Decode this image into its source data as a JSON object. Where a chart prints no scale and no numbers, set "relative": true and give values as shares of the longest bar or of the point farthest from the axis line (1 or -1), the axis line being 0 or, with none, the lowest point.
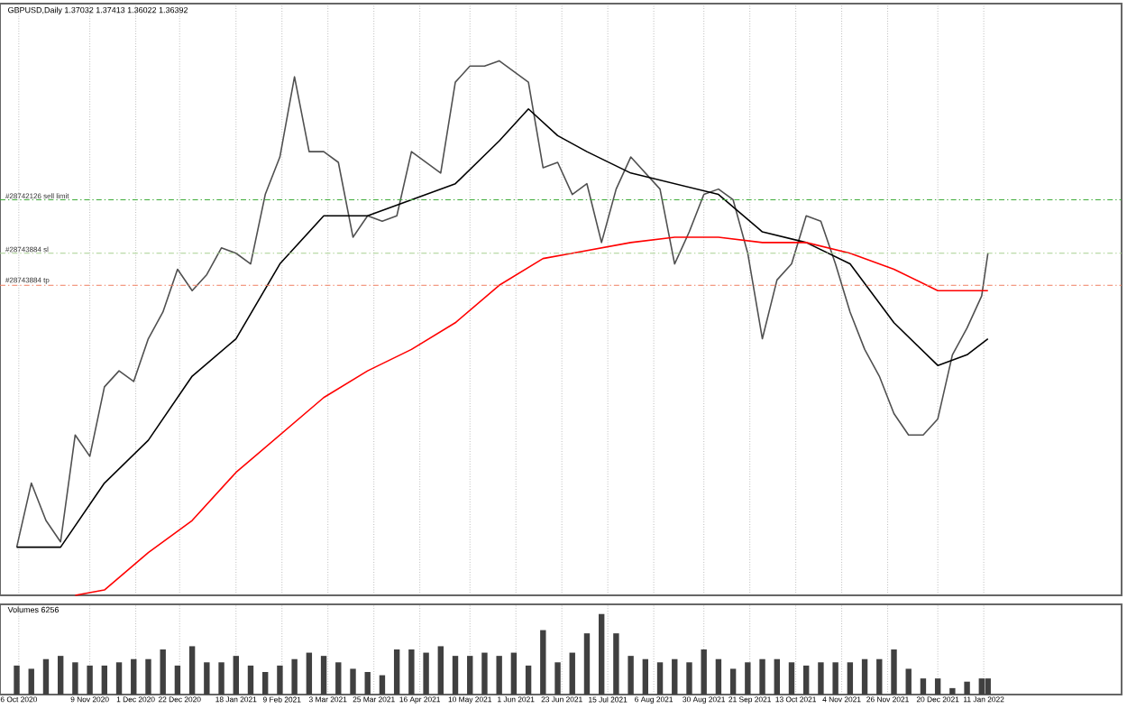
{
  "chart_data": [
    {
      "type": "line",
      "title": "GBPUSD,Daily 1.37032 1.37413 1.36022 1.36392",
      "relative": true,
      "tick_labels": false,
      "grid": "x",
      "xlim": [
        "2020-09-27",
        "2022-03-18"
      ],
      "series": [
        {
          "color": "#505050",
          "x": [
            "2020-10-05",
            "2020-10-12",
            "2020-10-19",
            "2020-10-26",
            "2020-11-02",
            "2020-11-09",
            "2020-11-16",
            "2020-11-23",
            "2020-11-30",
            "2020-12-07",
            "2020-12-14",
            "2020-12-21",
            "2020-12-28",
            "2021-01-04",
            "2021-01-11",
            "2021-01-18",
            "2021-01-25",
            "2021-02-01",
            "2021-02-08",
            "2021-02-15",
            "2021-02-22",
            "2021-03-01",
            "2021-03-08",
            "2021-03-15",
            "2021-03-22",
            "2021-03-29",
            "2021-04-05",
            "2021-04-12",
            "2021-04-19",
            "2021-04-26",
            "2021-05-03",
            "2021-05-10",
            "2021-05-17",
            "2021-05-24",
            "2021-05-31",
            "2021-06-07",
            "2021-06-14",
            "2021-06-21",
            "2021-06-28",
            "2021-07-05",
            "2021-07-12",
            "2021-07-19",
            "2021-07-26",
            "2021-08-02",
            "2021-08-09",
            "2021-08-16",
            "2021-08-23",
            "2021-08-30",
            "2021-09-06",
            "2021-09-13",
            "2021-09-20",
            "2021-09-27",
            "2021-10-04",
            "2021-10-11",
            "2021-10-18",
            "2021-10-25",
            "2021-11-01",
            "2021-11-08",
            "2021-11-15",
            "2021-11-22",
            "2021-11-29",
            "2021-12-06",
            "2021-12-13",
            "2021-12-20",
            "2021-12-27",
            "2022-01-03",
            "2022-01-10",
            "2022-01-13"
          ],
          "values": [
            0.09,
            0.21,
            0.14,
            0.1,
            0.3,
            0.26,
            0.39,
            0.42,
            0.4,
            0.48,
            0.53,
            0.61,
            0.57,
            0.6,
            0.65,
            0.64,
            0.62,
            0.75,
            0.82,
            0.97,
            0.83,
            0.83,
            0.81,
            0.67,
            0.71,
            0.7,
            0.71,
            0.83,
            0.81,
            0.79,
            0.96,
            0.99,
            0.99,
            1.0,
            0.98,
            0.96,
            0.8,
            0.81,
            0.75,
            0.77,
            0.66,
            0.76,
            0.82,
            0.79,
            0.76,
            0.62,
            0.68,
            0.75,
            0.76,
            0.74,
            0.64,
            0.48,
            0.59,
            0.62,
            0.71,
            0.7,
            0.62,
            0.53,
            0.46,
            0.41,
            0.34,
            0.3,
            0.3,
            0.33,
            0.45,
            0.5,
            0.56,
            0.64
          ]
        },
        {
          "color": "#000000",
          "x": [
            "2020-10-05",
            "2020-10-26",
            "2020-11-16",
            "2020-12-07",
            "2020-12-28",
            "2021-01-18",
            "2021-02-08",
            "2021-03-01",
            "2021-03-22",
            "2021-04-12",
            "2021-05-03",
            "2021-05-24",
            "2021-06-07",
            "2021-06-21",
            "2021-07-05",
            "2021-07-26",
            "2021-08-16",
            "2021-09-06",
            "2021-09-27",
            "2021-10-18",
            "2021-11-08",
            "2021-11-29",
            "2021-12-20",
            "2022-01-03",
            "2022-01-13"
          ],
          "values": [
            0.09,
            0.09,
            0.21,
            0.29,
            0.41,
            0.48,
            0.62,
            0.71,
            0.71,
            0.74,
            0.77,
            0.85,
            0.91,
            0.86,
            0.83,
            0.79,
            0.77,
            0.75,
            0.68,
            0.66,
            0.62,
            0.51,
            0.43,
            0.45,
            0.48
          ]
        },
        {
          "color": "#ff0000",
          "x": [
            "2020-11-02",
            "2020-11-16",
            "2020-12-07",
            "2020-12-28",
            "2021-01-18",
            "2021-02-08",
            "2021-03-01",
            "2021-03-22",
            "2021-04-12",
            "2021-05-03",
            "2021-05-24",
            "2021-06-14",
            "2021-06-28",
            "2021-07-26",
            "2021-08-16",
            "2021-09-06",
            "2021-09-27",
            "2021-10-18",
            "2021-11-08",
            "2021-11-29",
            "2021-12-20",
            "2022-01-03",
            "2022-01-13"
          ],
          "values": [
            0.0,
            0.01,
            0.08,
            0.14,
            0.23,
            0.3,
            0.37,
            0.42,
            0.46,
            0.51,
            0.58,
            0.63,
            0.64,
            0.66,
            0.67,
            0.67,
            0.66,
            0.66,
            0.64,
            0.61,
            0.57,
            0.57,
            0.57
          ]
        }
      ],
      "ref_lines": [
        {
          "axis": "y",
          "value": 0.74,
          "label": "#28742126 sell limit",
          "color": "#3aaa35",
          "line_style": "dashdot"
        },
        {
          "axis": "y",
          "value": 0.64,
          "label": "#28743884 sl",
          "color": "#a8d090",
          "line_style": "dashdot"
        },
        {
          "axis": "y",
          "value": 0.58,
          "label": "#28743884 tp",
          "color": "#f08060",
          "line_style": "dashdot"
        }
      ]
    },
    {
      "type": "bar",
      "title": "Volumes 6256",
      "relative": true,
      "tick_labels": "x",
      "grid": "x",
      "color": "#404040",
      "xlim": [
        "2020-09-27",
        "2022-03-18"
      ],
      "xticks": [
        {
          "value": "2020-10-06",
          "label": "6 Oct 2020"
        },
        {
          "value": "2020-11-09",
          "label": "9 Nov 2020"
        },
        {
          "value": "2020-12-01",
          "label": "1 Dec 2020"
        },
        {
          "value": "2020-12-22",
          "label": "22 Dec 2020"
        },
        {
          "value": "2021-01-18",
          "label": "18 Jan 2021"
        },
        {
          "value": "2021-02-09",
          "label": "9 Feb 2021"
        },
        {
          "value": "2021-03-03",
          "label": "3 Mar 2021"
        },
        {
          "value": "2021-03-25",
          "label": "25 Mar 2021"
        },
        {
          "value": "2021-04-16",
          "label": "16 Apr 2021"
        },
        {
          "value": "2021-05-10",
          "label": "10 May 2021"
        },
        {
          "value": "2021-06-01",
          "label": "1 Jun 2021"
        },
        {
          "value": "2021-06-23",
          "label": "23 Jun 2021"
        },
        {
          "value": "2021-07-15",
          "label": "15 Jul 2021"
        },
        {
          "value": "2021-08-06",
          "label": "6 Aug 2021"
        },
        {
          "value": "2021-08-30",
          "label": "30 Aug 2021"
        },
        {
          "value": "2021-09-21",
          "label": "21 Sep 2021"
        },
        {
          "value": "2021-10-13",
          "label": "13 Oct 2021"
        },
        {
          "value": "2021-11-04",
          "label": "4 Nov 2021"
        },
        {
          "value": "2021-11-26",
          "label": "26 Nov 2021"
        },
        {
          "value": "2021-12-20",
          "label": "20 Dec 2021"
        },
        {
          "value": "2022-01-11",
          "label": "11 Jan 2022"
        }
      ],
      "x": [
        "2020-10-05",
        "2020-10-12",
        "2020-10-19",
        "2020-10-26",
        "2020-11-02",
        "2020-11-09",
        "2020-11-16",
        "2020-11-23",
        "2020-11-30",
        "2020-12-07",
        "2020-12-14",
        "2020-12-21",
        "2020-12-28",
        "2021-01-04",
        "2021-01-11",
        "2021-01-18",
        "2021-01-25",
        "2021-02-01",
        "2021-02-08",
        "2021-02-15",
        "2021-02-22",
        "2021-03-01",
        "2021-03-08",
        "2021-03-15",
        "2021-03-22",
        "2021-03-29",
        "2021-04-05",
        "2021-04-12",
        "2021-04-19",
        "2021-04-26",
        "2021-05-03",
        "2021-05-10",
        "2021-05-17",
        "2021-05-24",
        "2021-05-31",
        "2021-06-07",
        "2021-06-14",
        "2021-06-21",
        "2021-06-28",
        "2021-07-05",
        "2021-07-12",
        "2021-07-19",
        "2021-07-26",
        "2021-08-02",
        "2021-08-09",
        "2021-08-16",
        "2021-08-23",
        "2021-08-30",
        "2021-09-06",
        "2021-09-13",
        "2021-09-20",
        "2021-09-27",
        "2021-10-04",
        "2021-10-11",
        "2021-10-18",
        "2021-10-25",
        "2021-11-01",
        "2021-11-08",
        "2021-11-15",
        "2021-11-22",
        "2021-11-29",
        "2021-12-06",
        "2021-12-13",
        "2021-12-20",
        "2021-12-27",
        "2022-01-03",
        "2022-01-10",
        "2022-01-13"
      ],
      "values": [
        0.36,
        0.32,
        0.44,
        0.48,
        0.4,
        0.36,
        0.36,
        0.4,
        0.44,
        0.44,
        0.56,
        0.36,
        0.6,
        0.4,
        0.4,
        0.48,
        0.36,
        0.28,
        0.36,
        0.44,
        0.52,
        0.48,
        0.4,
        0.32,
        0.28,
        0.24,
        0.56,
        0.56,
        0.52,
        0.6,
        0.48,
        0.48,
        0.52,
        0.48,
        0.52,
        0.36,
        0.8,
        0.4,
        0.52,
        0.76,
        1.0,
        0.76,
        0.48,
        0.44,
        0.4,
        0.44,
        0.4,
        0.56,
        0.44,
        0.32,
        0.4,
        0.44,
        0.44,
        0.4,
        0.36,
        0.4,
        0.4,
        0.4,
        0.44,
        0.44,
        0.56,
        0.32,
        0.2,
        0.2,
        0.08,
        0.16,
        0.2,
        0.2
      ]
    }
  ]
}
